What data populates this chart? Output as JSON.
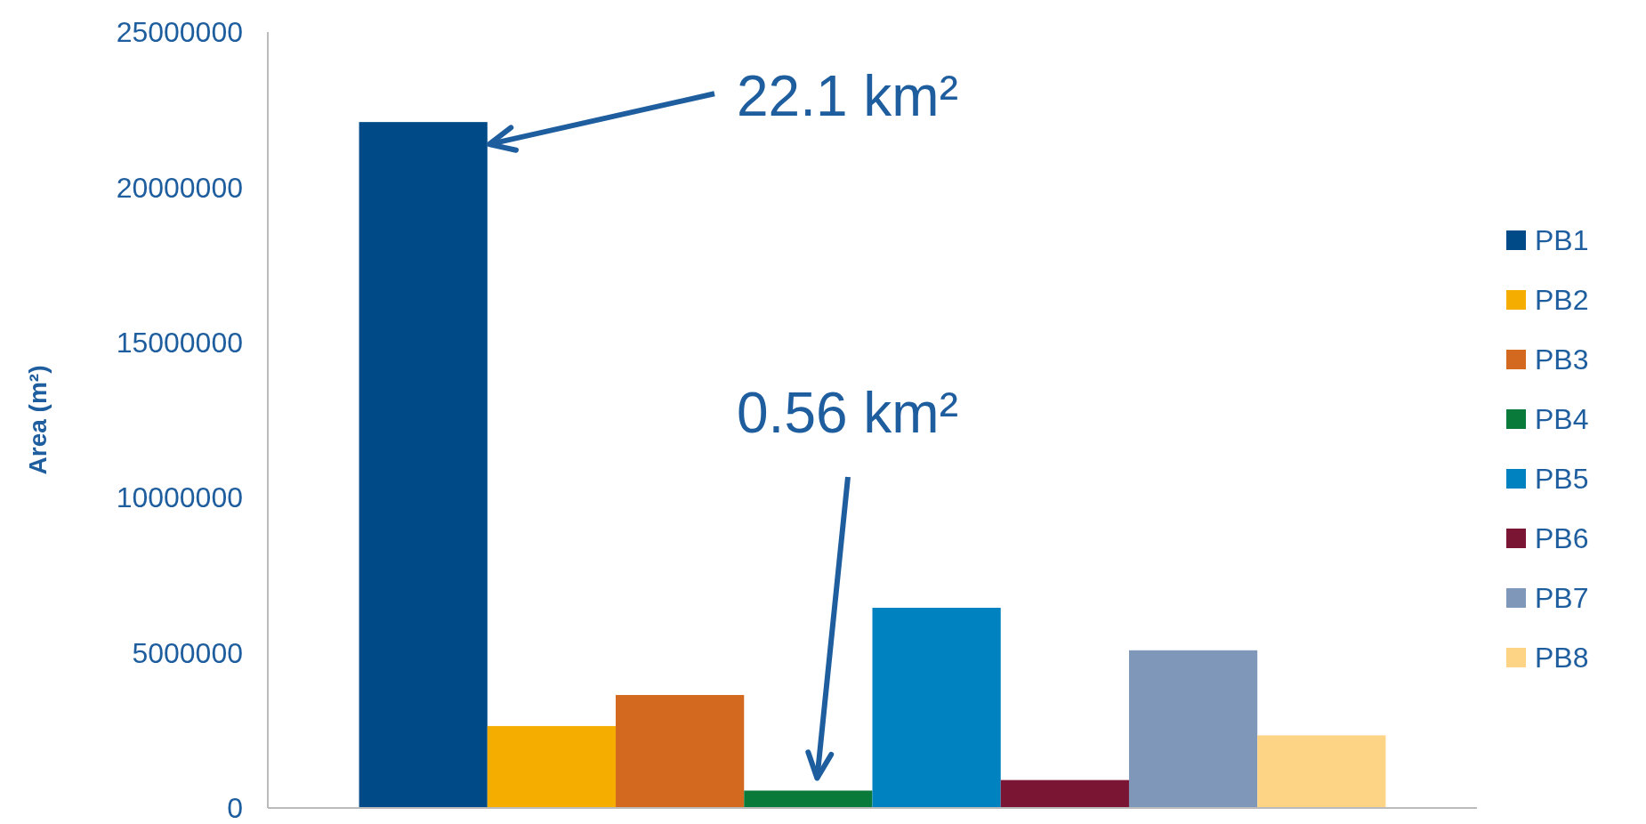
{
  "chart_data": {
    "type": "bar",
    "ylabel": "Area (m²)",
    "categories": [
      null
    ],
    "series": [
      {
        "name": "PB1",
        "color": "#004b87",
        "values": [
          22100000
        ]
      },
      {
        "name": "PB2",
        "color": "#f5ad00",
        "values": [
          2640000
        ]
      },
      {
        "name": "PB3",
        "color": "#d2691e",
        "values": [
          3640000
        ]
      },
      {
        "name": "PB4",
        "color": "#0a7a3a",
        "values": [
          560000
        ]
      },
      {
        "name": "PB5",
        "color": "#0082c0",
        "values": [
          6450000
        ]
      },
      {
        "name": "PB6",
        "color": "#7a1533",
        "values": [
          900000
        ]
      },
      {
        "name": "PB7",
        "color": "#7f97b8",
        "values": [
          5080000
        ]
      },
      {
        "name": "PB8",
        "color": "#fdd386",
        "values": [
          2340000
        ]
      }
    ],
    "ylim": [
      0,
      25000000
    ],
    "yticks": [
      0,
      5000000,
      10000000,
      15000000,
      20000000,
      25000000
    ],
    "legend": "right",
    "grid": false,
    "annotations": [
      "22.1 km²",
      "0.56 km²"
    ]
  }
}
